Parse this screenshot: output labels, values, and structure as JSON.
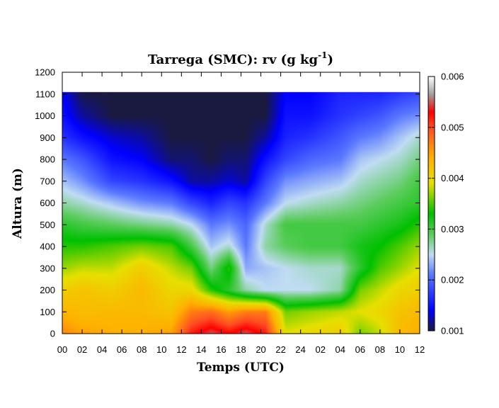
{
  "chart_data": {
    "type": "heatmap",
    "title": "Tarrega (SMC): rv (g kg",
    "title_sup": "-1",
    "title_end": ")",
    "xlabel": "Temps (UTC)",
    "ylabel": "Altura (m)",
    "x_ticks": [
      "00",
      "02",
      "04",
      "06",
      "08",
      "10",
      "12",
      "14",
      "16",
      "18",
      "20",
      "22",
      "24",
      "02",
      "04",
      "06",
      "08",
      "10",
      "12"
    ],
    "y_ticks": [
      0,
      100,
      200,
      300,
      400,
      500,
      600,
      700,
      800,
      900,
      1000,
      1100,
      1200
    ],
    "ylim": [
      0,
      1200
    ],
    "xlim_hours": [
      0,
      36
    ],
    "data_top": 1110,
    "colorbar": {
      "range": [
        0.001,
        0.006
      ],
      "ticks": [
        "0.001",
        "0.002",
        "0.003",
        "0.004",
        "0.005",
        "0.006"
      ],
      "stops": [
        {
          "v": 0.0,
          "color": "#1a1a40"
        },
        {
          "v": 0.08,
          "color": "#0000ff"
        },
        {
          "v": 0.22,
          "color": "#5a78ff"
        },
        {
          "v": 0.3,
          "color": "#c0dcf2"
        },
        {
          "v": 0.38,
          "color": "#5acc5a"
        },
        {
          "v": 0.46,
          "color": "#00c000"
        },
        {
          "v": 0.58,
          "color": "#e6e000"
        },
        {
          "v": 0.68,
          "color": "#ffb000"
        },
        {
          "v": 0.8,
          "color": "#ff4c24"
        },
        {
          "v": 0.86,
          "color": "#ff0000"
        },
        {
          "v": 0.93,
          "color": "#a0a0a0"
        },
        {
          "v": 1.0,
          "color": "#ffffff"
        }
      ]
    },
    "profiles": [
      {
        "t": 0,
        "z": [
          0,
          80,
          200,
          300,
          400,
          500,
          600,
          700,
          800,
          900,
          1000,
          1110
        ],
        "rv": [
          0.00465,
          0.0044,
          0.0041,
          0.0037,
          0.0034,
          0.0031,
          0.0027,
          0.0024,
          0.0021,
          0.0017,
          0.0015,
          0.0014
        ]
      },
      {
        "t": 2,
        "z": [
          0,
          80,
          200,
          300,
          400,
          500,
          600,
          700,
          800,
          900,
          1000,
          1110
        ],
        "rv": [
          0.0045,
          0.0043,
          0.0042,
          0.0038,
          0.0034,
          0.003,
          0.0026,
          0.0022,
          0.0019,
          0.0015,
          0.0012,
          0.001
        ]
      },
      {
        "t": 5,
        "z": [
          0,
          100,
          200,
          300,
          400,
          500,
          600,
          700,
          800,
          900,
          1000,
          1110
        ],
        "rv": [
          0.0044,
          0.0043,
          0.0041,
          0.0038,
          0.0035,
          0.0029,
          0.0024,
          0.0018,
          0.0015,
          0.0013,
          0.001,
          0.001
        ]
      },
      {
        "t": 8,
        "z": [
          0,
          100,
          200,
          300,
          400,
          500,
          600,
          700,
          800,
          900,
          1000,
          1110
        ],
        "rv": [
          0.0044,
          0.0043,
          0.0043,
          0.0041,
          0.0036,
          0.0028,
          0.0022,
          0.0017,
          0.0014,
          0.0012,
          0.001,
          0.001
        ]
      },
      {
        "t": 11,
        "z": [
          0,
          100,
          200,
          300,
          400,
          500,
          600,
          700,
          800,
          900,
          1000,
          1110
        ],
        "rv": [
          0.0045,
          0.0042,
          0.004,
          0.0038,
          0.0035,
          0.0027,
          0.0021,
          0.0015,
          0.0011,
          0.001,
          0.001,
          0.001
        ]
      },
      {
        "t": 13,
        "z": [
          0,
          100,
          200,
          300,
          400,
          500,
          600,
          700,
          800,
          900,
          1000,
          1110
        ],
        "rv": [
          0.0052,
          0.0047,
          0.004,
          0.0036,
          0.003,
          0.0025,
          0.0018,
          0.0012,
          0.0011,
          0.001,
          0.001,
          0.001
        ]
      },
      {
        "t": 15,
        "z": [
          0,
          100,
          200,
          300,
          400,
          500,
          600,
          700,
          800,
          900,
          1000,
          1110
        ],
        "rv": [
          0.0055,
          0.0048,
          0.0034,
          0.0028,
          0.0024,
          0.0021,
          0.0016,
          0.0012,
          0.001,
          0.001,
          0.001,
          0.001
        ]
      },
      {
        "t": 16.8,
        "z": [
          0,
          100,
          200,
          300,
          400,
          500,
          600,
          700,
          800,
          900,
          1000,
          1110
        ],
        "rv": [
          0.0053,
          0.0045,
          0.0031,
          0.0034,
          0.0026,
          0.0022,
          0.0018,
          0.0013,
          0.0011,
          0.001,
          0.001,
          0.001
        ]
      },
      {
        "t": 18.5,
        "z": [
          0,
          100,
          200,
          300,
          400,
          500,
          600,
          700,
          800,
          900,
          1000,
          1110
        ],
        "rv": [
          0.0055,
          0.0047,
          0.0027,
          0.0023,
          0.0021,
          0.002,
          0.0017,
          0.0012,
          0.0011,
          0.001,
          0.001,
          0.001
        ]
      },
      {
        "t": 20.5,
        "z": [
          0,
          100,
          200,
          300,
          400,
          500,
          600,
          700,
          800,
          900,
          1000,
          1110
        ],
        "rv": [
          0.0052,
          0.0047,
          0.0025,
          0.0024,
          0.0027,
          0.0026,
          0.0021,
          0.0018,
          0.0015,
          0.0012,
          0.001,
          0.001
        ]
      },
      {
        "t": 22.5,
        "z": [
          0,
          100,
          200,
          300,
          400,
          500,
          600,
          700,
          800,
          900,
          1000,
          1110
        ],
        "rv": [
          0.0039,
          0.0036,
          0.0025,
          0.0025,
          0.0029,
          0.003,
          0.0025,
          0.0022,
          0.0018,
          0.0016,
          0.0015,
          0.0014
        ]
      },
      {
        "t": 25,
        "z": [
          0,
          100,
          200,
          300,
          400,
          500,
          600,
          700,
          800,
          900,
          1000,
          1110
        ],
        "rv": [
          0.004,
          0.0037,
          0.0025,
          0.0026,
          0.003,
          0.003,
          0.0026,
          0.0023,
          0.002,
          0.0017,
          0.0015,
          0.0014
        ]
      },
      {
        "t": 28,
        "z": [
          0,
          100,
          200,
          300,
          400,
          500,
          600,
          700,
          800,
          900,
          1000,
          1110
        ],
        "rv": [
          0.0041,
          0.0038,
          0.0027,
          0.0026,
          0.003,
          0.003,
          0.0027,
          0.0024,
          0.0021,
          0.0019,
          0.0017,
          0.0016
        ]
      },
      {
        "t": 30,
        "z": [
          0,
          100,
          200,
          300,
          400,
          500,
          600,
          700,
          800,
          900,
          1000,
          1110
        ],
        "rv": [
          0.0036,
          0.0039,
          0.0036,
          0.0031,
          0.0032,
          0.003,
          0.0028,
          0.0026,
          0.0024,
          0.0021,
          0.0018,
          0.0016
        ]
      },
      {
        "t": 32,
        "z": [
          0,
          100,
          200,
          300,
          400,
          500,
          600,
          700,
          800,
          900,
          1000,
          1110
        ],
        "rv": [
          0.0038,
          0.004,
          0.0038,
          0.0035,
          0.0033,
          0.0031,
          0.0029,
          0.0027,
          0.0025,
          0.0022,
          0.0019,
          0.0016
        ]
      },
      {
        "t": 34,
        "z": [
          0,
          100,
          200,
          300,
          400,
          500,
          600,
          700,
          800,
          900,
          1000,
          1110
        ],
        "rv": [
          0.0043,
          0.0042,
          0.004,
          0.0037,
          0.0035,
          0.0032,
          0.003,
          0.0028,
          0.0026,
          0.0024,
          0.0021,
          0.0017
        ]
      },
      {
        "t": 36,
        "z": [
          0,
          100,
          200,
          300,
          400,
          500,
          600,
          700,
          800,
          900,
          1000,
          1110
        ],
        "rv": [
          0.0044,
          0.0043,
          0.0041,
          0.0039,
          0.0037,
          0.0034,
          0.0031,
          0.003,
          0.0028,
          0.0026,
          0.0022,
          0.0018
        ]
      }
    ]
  }
}
